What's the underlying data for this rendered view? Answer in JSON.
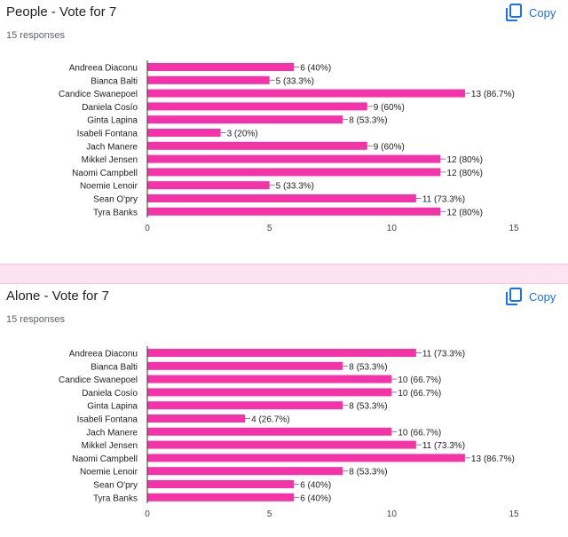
{
  "ui": {
    "copy_label": "Copy",
    "accent": "#f533a8",
    "link_color": "#1a73e8"
  },
  "cards": [
    {
      "title": "People - Vote for 7",
      "responses": "15 responses"
    },
    {
      "title": "Alone - Vote for 7",
      "responses": "15 responses"
    }
  ],
  "chart_data": [
    {
      "type": "bar",
      "orientation": "horizontal",
      "categories": [
        "Andreea Diaconu",
        "Bianca Balti",
        "Candice Swanepoel",
        "Daniela Cosío",
        "Ginta Lapina",
        "Isabeli Fontana",
        "Jach Manere",
        "Mikkel Jensen",
        "Naomi Campbell",
        "Noemie Lenoir",
        "Sean O'pry",
        "Tyra Banks"
      ],
      "values": [
        6,
        5,
        13,
        9,
        8,
        3,
        9,
        12,
        12,
        5,
        11,
        12
      ],
      "data_labels": [
        "6 (40%)",
        "5 (33.3%)",
        "13 (86.7%)",
        "9 (60%)",
        "8 (53.3%)",
        "3 (20%)",
        "9 (60%)",
        "12 (80%)",
        "12 (80%)",
        "5 (33.3%)",
        "11 (73.3%)",
        "12 (80%)"
      ],
      "xlim": [
        0,
        15
      ],
      "xticks": [
        "0",
        "5",
        "10",
        "15"
      ],
      "grid": false
    },
    {
      "type": "bar",
      "orientation": "horizontal",
      "categories": [
        "Andreea Diaconu",
        "Bianca Balti",
        "Candice Swanepoel",
        "Daniela Cosío",
        "Ginta Lapina",
        "Isabeli Fontana",
        "Jach Manere",
        "Mikkel Jensen",
        "Naomi Campbell",
        "Noemie Lenoir",
        "Sean O'pry",
        "Tyra Banks"
      ],
      "values": [
        11,
        8,
        10,
        10,
        8,
        4,
        10,
        11,
        13,
        8,
        6,
        6
      ],
      "data_labels": [
        "11 (73.3%)",
        "8 (53.3%)",
        "10 (66.7%)",
        "10 (66.7%)",
        "8 (53.3%)",
        "4 (26.7%)",
        "10 (66.7%)",
        "11 (73.3%)",
        "13 (86.7%)",
        "8 (53.3%)",
        "6 (40%)",
        "6 (40%)"
      ],
      "xlim": [
        0,
        15
      ],
      "xticks": [
        "0",
        "5",
        "10",
        "15"
      ],
      "grid": false
    }
  ]
}
